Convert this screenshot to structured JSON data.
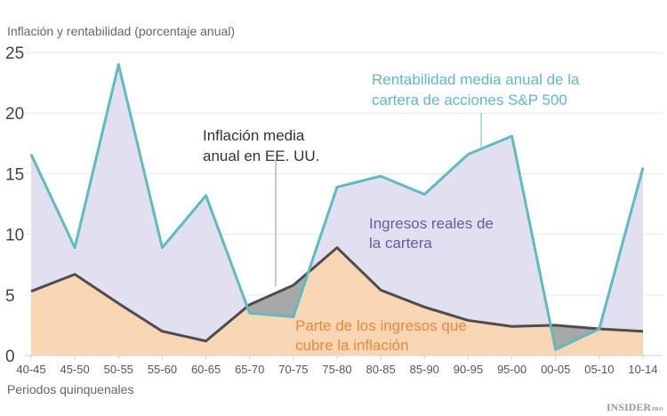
{
  "chart_data": {
    "type": "area",
    "title": "Inflación y rentabilidad (porcentaje anual)",
    "xlabel": "Periodos quinquenales",
    "ylabel": "",
    "ylim": [
      0,
      25
    ],
    "yticks": [
      0,
      5,
      10,
      15,
      20,
      25
    ],
    "grid": true,
    "categories": [
      "40-45",
      "45-50",
      "50-55",
      "55-60",
      "60-65",
      "65-70",
      "70-75",
      "75-80",
      "80-85",
      "85-90",
      "90-95",
      "95-00",
      "00-05",
      "05-10",
      "10-14"
    ],
    "series": [
      {
        "name": "Rentabilidad media anual de la cartera de acciones S&P 500",
        "color": "#5cbcc2",
        "values": [
          16.6,
          8.9,
          24.0,
          8.9,
          13.2,
          3.5,
          3.2,
          13.9,
          14.8,
          13.3,
          16.6,
          18.1,
          0.5,
          2.2,
          15.5
        ]
      },
      {
        "name": "Inflación media anual en EE. UU.",
        "color": "#4d4d4d",
        "values": [
          5.3,
          6.7,
          4.3,
          2.0,
          1.2,
          4.2,
          5.8,
          8.9,
          5.4,
          4.0,
          2.9,
          2.4,
          2.5,
          2.2,
          2.0
        ]
      }
    ],
    "annotations": [
      {
        "text": [
          "Rentabilidad media anual de la",
          "cartera de acciones S&P 500"
        ],
        "color": "#5cbcc2"
      },
      {
        "text": [
          "Inflación media",
          "anual en EE. UU."
        ],
        "color": "#333333"
      },
      {
        "text": [
          "Ingresos reales de",
          "la cartera"
        ],
        "color": "#6a5a9e"
      },
      {
        "text": [
          "Parte de los ingresos que",
          "cubre la inflación"
        ],
        "color": "#e8893a"
      }
    ],
    "fill_colors": {
      "real_income": "#e2dff0",
      "inflation_part": "#f8d6b4",
      "loss": "#a8a8a8"
    }
  },
  "logo": {
    "text": "INSIDER",
    "sup": "PRO"
  }
}
